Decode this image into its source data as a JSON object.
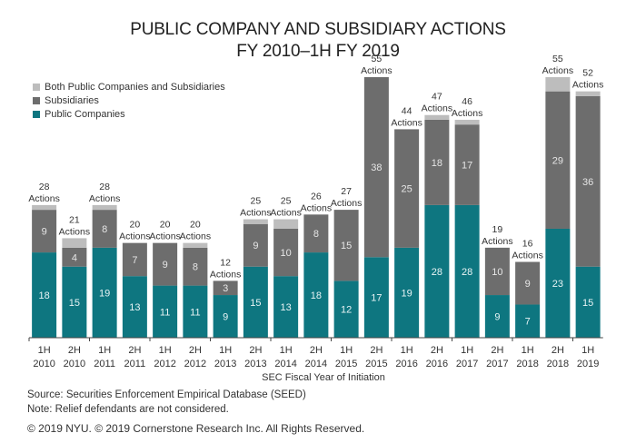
{
  "chart_data": {
    "type": "bar",
    "stacked": true,
    "title": "PUBLIC COMPANY AND SUBSIDIARY ACTIONS",
    "subtitle": "FY 2010–1H FY 2019",
    "xlabel": "SEC Fiscal Year of Initiation",
    "ylabel": "",
    "ylim": [
      0,
      57
    ],
    "grid": false,
    "legend_position": "top-left",
    "categories": [
      [
        "1H",
        "2010"
      ],
      [
        "2H",
        "2010"
      ],
      [
        "1H",
        "2011"
      ],
      [
        "2H",
        "2011"
      ],
      [
        "1H",
        "2012"
      ],
      [
        "2H",
        "2012"
      ],
      [
        "1H",
        "2013"
      ],
      [
        "2H",
        "2013"
      ],
      [
        "1H",
        "2014"
      ],
      [
        "2H",
        "2014"
      ],
      [
        "1H",
        "2015"
      ],
      [
        "2H",
        "2015"
      ],
      [
        "1H",
        "2016"
      ],
      [
        "2H",
        "2016"
      ],
      [
        "1H",
        "2017"
      ],
      [
        "2H",
        "2017"
      ],
      [
        "1H",
        "2018"
      ],
      [
        "2H",
        "2018"
      ],
      [
        "1H",
        "2019"
      ]
    ],
    "series": [
      {
        "name": "Public Companies",
        "color": "#0e7680",
        "values": [
          18,
          15,
          19,
          13,
          11,
          11,
          9,
          15,
          13,
          18,
          12,
          17,
          19,
          28,
          28,
          9,
          7,
          23,
          15
        ]
      },
      {
        "name": "Subsidiaries",
        "color": "#6d6d6d",
        "values": [
          9,
          4,
          8,
          7,
          9,
          8,
          3,
          9,
          10,
          8,
          15,
          38,
          25,
          18,
          17,
          10,
          9,
          29,
          36
        ]
      },
      {
        "name": "Both Public Companies and Subsidiaries",
        "color": "#bdbdbd",
        "values": [
          1,
          2,
          1,
          0,
          0,
          1,
          0,
          1,
          2,
          0,
          0,
          0,
          0,
          1,
          1,
          0,
          0,
          3,
          1
        ]
      }
    ],
    "totals": [
      28,
      21,
      28,
      20,
      20,
      20,
      12,
      25,
      25,
      26,
      27,
      55,
      44,
      47,
      46,
      19,
      16,
      55,
      52
    ],
    "total_suffix": "Actions",
    "legend_order": [
      "Both Public Companies and Subsidiaries",
      "Subsidiaries",
      "Public Companies"
    ]
  },
  "footer": {
    "source": "Source: Securities Enforcement Empirical Database (SEED)",
    "note": "Note: Relief defendants are not considered.",
    "copyright": "© 2019 NYU. © 2019 Cornerstone Research Inc. All Rights Reserved."
  }
}
